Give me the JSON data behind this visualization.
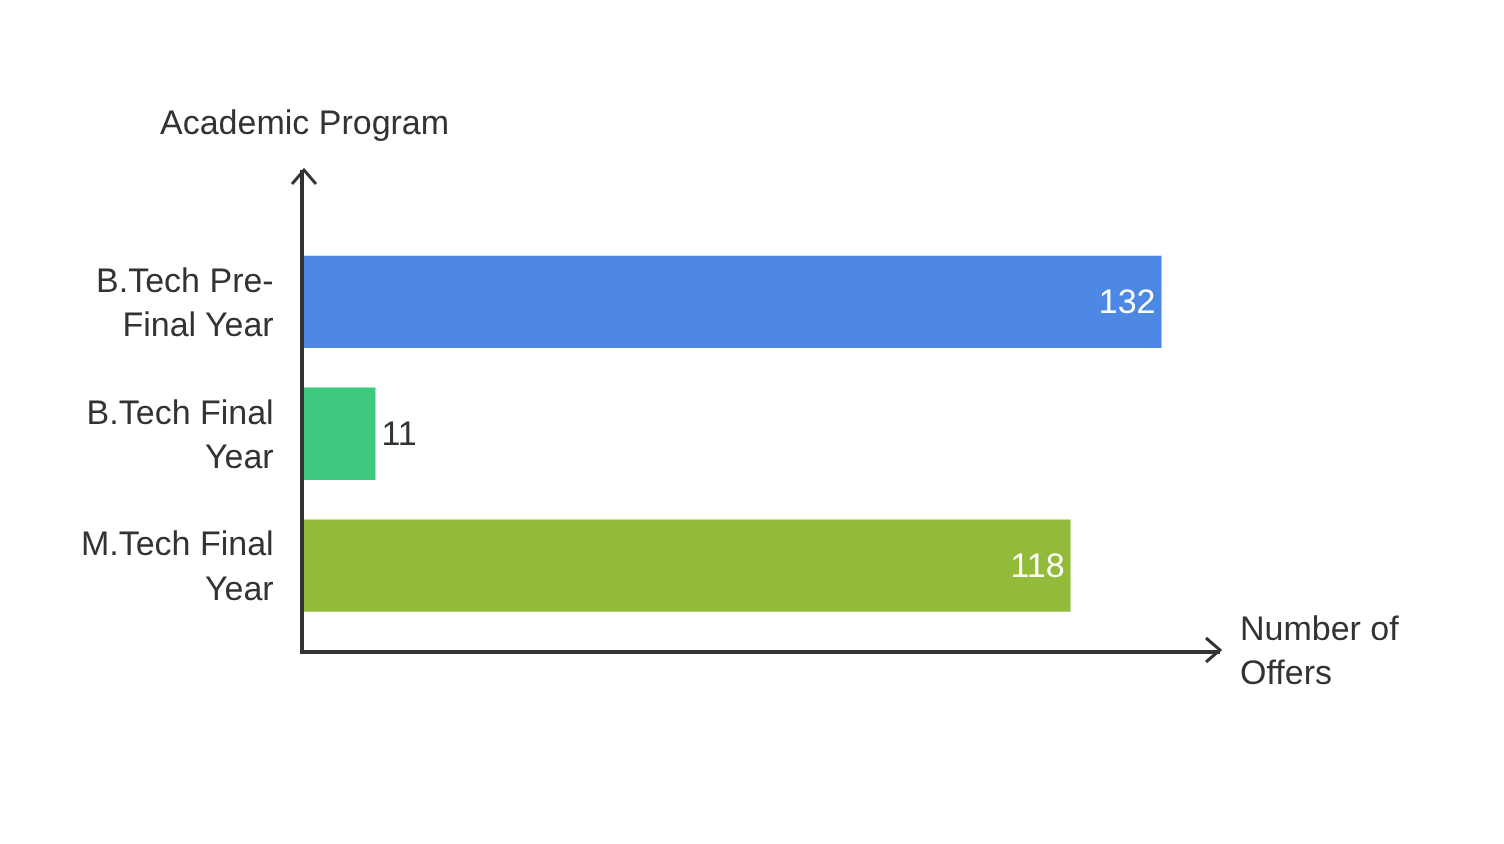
{
  "chart_data": {
    "type": "bar",
    "orientation": "horizontal",
    "ylabel": "Academic Program",
    "xlabel": "Number of Offers",
    "categories": [
      "B.Tech Pre-Final Year",
      "B.Tech Final Year",
      "M.Tech Final Year"
    ],
    "values": [
      132,
      11,
      118
    ],
    "colors": [
      "#4e88e5",
      "#3ec97e",
      "#93bb3a"
    ],
    "xlim": [
      0,
      141
    ],
    "data_labels": true
  }
}
